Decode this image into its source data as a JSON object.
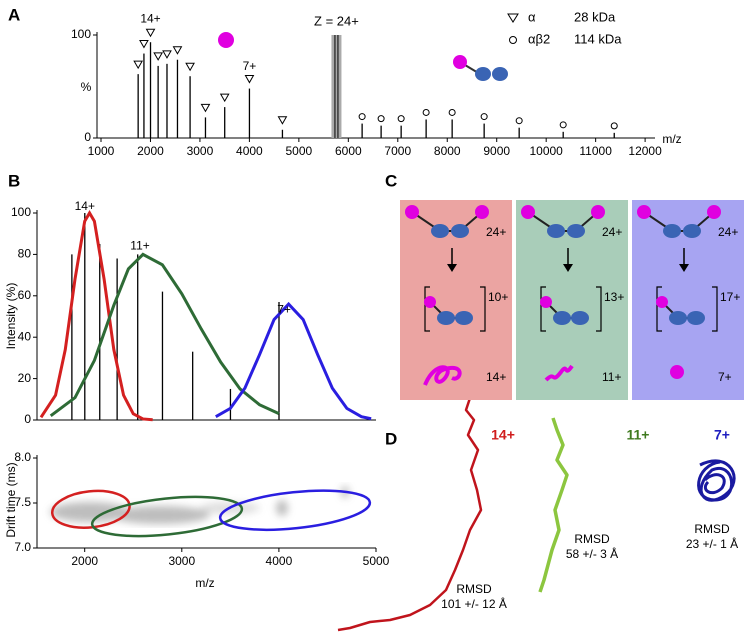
{
  "panel_labels": [
    "A",
    "B",
    "C",
    "D"
  ],
  "chart_data": [
    {
      "type": "spectrum",
      "xlabel": "m/z",
      "ylabel": "%",
      "xlim": [
        1000,
        12200
      ],
      "xticks": [
        1000,
        2000,
        3000,
        4000,
        5000,
        6000,
        7000,
        8000,
        9000,
        10000,
        11000,
        12000
      ],
      "ylim": [
        0,
        100
      ],
      "yticks": [
        0,
        100
      ],
      "series": [
        {
          "name": "α",
          "detail": "28 kDa",
          "marker": "triangle",
          "color": "#000000",
          "x": [
            1751,
            1868,
            2001,
            2155,
            2334,
            2546,
            2801,
            3112,
            3501,
            4001,
            4668
          ],
          "values": [
            62,
            82,
            93,
            70,
            72,
            76,
            60,
            20,
            30,
            48,
            8
          ]
        },
        {
          "name": "αβ2",
          "detail": "114 kDa",
          "marker": "circle",
          "color": "#000000",
          "x": [
            6279,
            6663,
            7068,
            7573,
            8099,
            8746,
            9454,
            10344,
            11376
          ],
          "values": [
            14,
            12,
            12,
            18,
            18,
            14,
            10,
            6,
            5
          ]
        }
      ],
      "highlight": {
        "label": "Z = 24+",
        "x": 5760,
        "value": 100
      },
      "annotations": [
        {
          "text": "14+",
          "x": 2001,
          "y": 115
        },
        {
          "text": "7+",
          "x": 4001,
          "y": 69
        }
      ]
    },
    {
      "type": "spectrum",
      "ylabel": "Intensity (%)",
      "xlim": [
        1550,
        5000
      ],
      "ylim": [
        0,
        100
      ],
      "yticks": [
        0,
        20,
        40,
        60,
        80,
        100
      ],
      "series": [
        {
          "color": "#000000",
          "x": [
            1868,
            2001,
            2155,
            2334,
            2546,
            2801,
            3112,
            3501,
            4001
          ],
          "values": [
            80,
            100,
            85,
            78,
            80,
            62,
            33,
            15,
            57
          ]
        }
      ],
      "curves": [
        {
          "color": "#d42020",
          "x": [
            1550,
            1700,
            1800,
            1900,
            2000,
            2050,
            2100,
            2200,
            2300,
            2400,
            2500,
            2600,
            2700
          ],
          "values": [
            1.3,
            12,
            34,
            68,
            96,
            100,
            96,
            68,
            34,
            12,
            3,
            0.5,
            0.1
          ]
        },
        {
          "color": "#2e6b36",
          "x": [
            1650,
            1900,
            2100,
            2300,
            2450,
            2600,
            2800,
            3000,
            3200,
            3400,
            3600,
            3800,
            4000
          ],
          "values": [
            2,
            10.8,
            28.8,
            55.4,
            73,
            80,
            75,
            61,
            44,
            28,
            15,
            7.4,
            3.1
          ]
        },
        {
          "color": "#2a1ee0",
          "x": [
            3350,
            3500,
            3650,
            3800,
            3950,
            4100,
            4250,
            4400,
            4550,
            4700,
            4850,
            4950
          ],
          "values": [
            1.6,
            5.6,
            15.4,
            31.5,
            48.5,
            56,
            48.5,
            31.5,
            15.4,
            5.6,
            1.6,
            0.6
          ]
        }
      ],
      "annotations": [
        {
          "text": "14+",
          "x": 2001,
          "y": 103
        },
        {
          "text": "11+",
          "x": 2570,
          "y": 84
        },
        {
          "text": "7+",
          "x": 4053,
          "y": 53
        }
      ]
    },
    {
      "type": "ellipses",
      "xlabel": "m/z",
      "ylabel": "Drift time (ms)",
      "xlim": [
        1550,
        5000
      ],
      "xticks": [
        2000,
        3000,
        4000,
        5000
      ],
      "ylim": [
        7.0,
        8.0
      ],
      "yticks": [
        {
          "value": 7.0,
          "label": "7.0"
        },
        7.5,
        {
          "value": 8.0,
          "label": "8.0"
        }
      ],
      "ellipses": [
        {
          "color": "#d42020",
          "x": 2064,
          "y": 7.43,
          "rx": 400,
          "ry": 0.2
        },
        {
          "color": "#2e6b36",
          "x": 2848,
          "y": 7.35,
          "rx": 775,
          "ry": 0.2
        },
        {
          "color": "#2a1ee0",
          "x": 4166,
          "y": 7.42,
          "rx": 775,
          "ry": 0.2
        }
      ]
    }
  ],
  "diagram": {
    "boxes": [
      {
        "color": "#eba4a2",
        "precursor": "24+",
        "complex": "10+",
        "released": "14+"
      },
      {
        "color": "#a9cdb9",
        "precursor": "24+",
        "complex": "13+",
        "released": "11+"
      },
      {
        "color": "#a7a4f2",
        "precursor": "24+",
        "complex": "17+",
        "released": "7+"
      }
    ]
  },
  "structures": [
    {
      "charge": "14+",
      "color": "#d01c1c",
      "rmsd_label": "RMSD",
      "rmsd": "101 +/- 12 Å"
    },
    {
      "charge": "11+",
      "color": "#3f7a1f",
      "rmsd_label": "RMSD",
      "rmsd": "58 +/- 3 Å"
    },
    {
      "charge": "7+",
      "color": "#2020c0",
      "rmsd_label": "RMSD",
      "rmsd": "23 +/- 1 Å"
    }
  ]
}
